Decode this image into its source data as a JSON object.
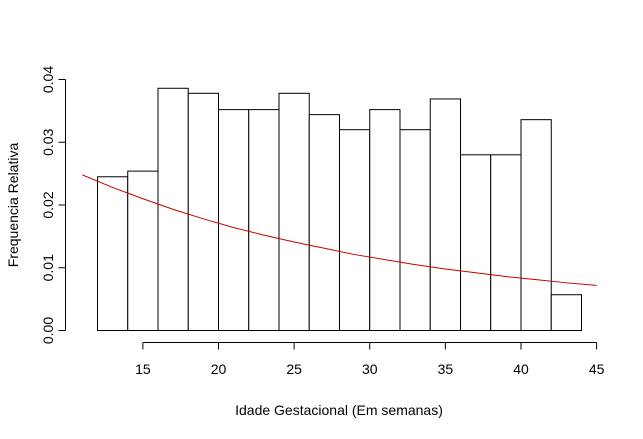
{
  "chart_data": {
    "type": "bar",
    "xlabel": "Idade Gestacional (Em semanas)",
    "ylabel": "Frequencia Relativa",
    "xlim": [
      12,
      45
    ],
    "ylim": [
      0,
      0.04
    ],
    "x_ticks": [
      15,
      20,
      25,
      30,
      35,
      40,
      45
    ],
    "y_ticks": [
      0.0,
      0.01,
      0.02,
      0.03,
      0.04
    ],
    "x_tick_labels": [
      "15",
      "20",
      "25",
      "30",
      "35",
      "40",
      "45"
    ],
    "y_tick_labels": [
      "0.00",
      "0.01",
      "0.02",
      "0.03",
      "0.04"
    ],
    "bin_edges": [
      12,
      14,
      16,
      18,
      20,
      22,
      24,
      26,
      28,
      30,
      32,
      34,
      36,
      38,
      40,
      42,
      44
    ],
    "values": [
      0.0245,
      0.0254,
      0.0386,
      0.0378,
      0.0352,
      0.0352,
      0.0378,
      0.0344,
      0.032,
      0.0352,
      0.032,
      0.0369,
      0.028,
      0.028,
      0.0336,
      0.0057
    ],
    "curve": {
      "color": "#cc0000",
      "x": [
        11,
        13,
        15,
        17,
        19,
        21,
        23,
        25,
        27,
        29,
        31,
        33,
        35,
        37,
        39,
        41,
        43,
        45
      ],
      "y": [
        0.0248,
        0.0228,
        0.021,
        0.0193,
        0.0178,
        0.0164,
        0.0152,
        0.0141,
        0.0131,
        0.0121,
        0.0113,
        0.0105,
        0.0098,
        0.0092,
        0.0086,
        0.0081,
        0.0076,
        0.0072
      ]
    },
    "grid": false,
    "legend": "none"
  }
}
